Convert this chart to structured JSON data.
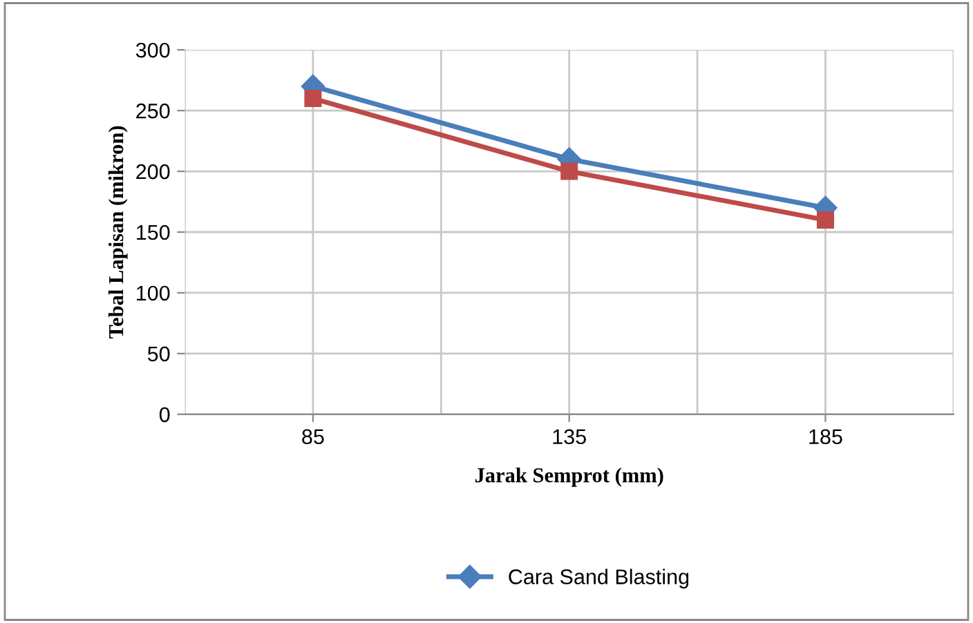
{
  "chart_data": {
    "type": "line",
    "xlabel": "Jarak Semprot (mm)",
    "ylabel": "Tebal Lapisan (mikron)",
    "categories": [
      "85",
      "135",
      "185"
    ],
    "series": [
      {
        "name": "Cara Sand Blasting",
        "color": "#4a7ebb",
        "values": [
          270,
          210,
          170
        ],
        "marker": "diamond"
      },
      {
        "color": "#be4b48",
        "values": [
          260,
          200,
          160
        ],
        "marker": "square"
      }
    ],
    "ylim": [
      0,
      300
    ],
    "yticks": [
      0,
      50,
      100,
      150,
      200,
      250,
      300
    ],
    "grid": true,
    "legend": "bottom",
    "line_style": "solid"
  }
}
